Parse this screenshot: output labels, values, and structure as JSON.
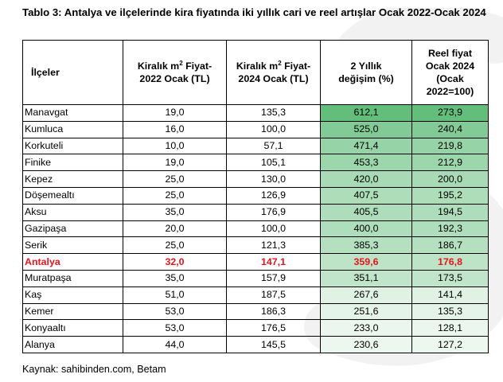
{
  "title": "Tablo 3: Antalya ve ilçelerinde kira fiyatında iki yıllık cari ve reel artışlar Ocak 2022-Ocak 2024",
  "headers": {
    "ilceler": "İlçeler",
    "col2_a": "Kiralık m",
    "col2_sup": "2",
    "col2_b": " Fiyat-",
    "col2_c": "2022 Ocak (TL)",
    "col3_a": "Kiralık m",
    "col3_sup": "2",
    "col3_b": " Fiyat-",
    "col3_c": "2024 Ocak (TL)",
    "col4_a": "2 Yıllık",
    "col4_b": "değişim (%)",
    "col5_a": "Reel fiyat",
    "col5_b": "Ocak 2024",
    "col5_c": "(Ocak",
    "col5_d": "2022=100)"
  },
  "rows": [
    {
      "name": "Manavgat",
      "p2022": "19,0",
      "p2024": "135,3",
      "change": "612,1",
      "real": "273,9"
    },
    {
      "name": "Kumluca",
      "p2022": "16,0",
      "p2024": "100,0",
      "change": "525,0",
      "real": "240,4"
    },
    {
      "name": "Korkuteli",
      "p2022": "10,0",
      "p2024": "57,1",
      "change": "471,4",
      "real": "219,8"
    },
    {
      "name": "Finike",
      "p2022": "19,0",
      "p2024": "105,1",
      "change": "453,3",
      "real": "212,9"
    },
    {
      "name": "Kepez",
      "p2022": "25,0",
      "p2024": "130,0",
      "change": "420,0",
      "real": "200,0"
    },
    {
      "name": "Döşemealtı",
      "p2022": "25,0",
      "p2024": "126,9",
      "change": "407,5",
      "real": "195,2"
    },
    {
      "name": "Aksu",
      "p2022": "35,0",
      "p2024": "176,9",
      "change": "405,5",
      "real": "194,5"
    },
    {
      "name": "Gazipaşa",
      "p2022": "20,0",
      "p2024": "100,0",
      "change": "400,0",
      "real": "192,3"
    },
    {
      "name": "Serik",
      "p2022": "25,0",
      "p2024": "121,3",
      "change": "385,3",
      "real": "186,7"
    },
    {
      "name": "Antalya",
      "p2022": "32,0",
      "p2024": "147,1",
      "change": "359,6",
      "real": "176,8",
      "highlight": true
    },
    {
      "name": "Muratpaşa",
      "p2022": "35,0",
      "p2024": "157,9",
      "change": "351,1",
      "real": "173,5"
    },
    {
      "name": "Kaş",
      "p2022": "51,0",
      "p2024": "187,5",
      "change": "267,6",
      "real": "141,4"
    },
    {
      "name": "Kemer",
      "p2022": "53,0",
      "p2024": "186,3",
      "change": "251,6",
      "real": "135,3"
    },
    {
      "name": "Konyaaltı",
      "p2022": "53,0",
      "p2024": "176,5",
      "change": "233,0",
      "real": "128,1"
    },
    {
      "name": "Alanya",
      "p2022": "44,0",
      "p2024": "145,5",
      "change": "230,6",
      "real": "127,2"
    }
  ],
  "colors": {
    "highlight_text": "#e8141c",
    "heat_high": "#63be7b",
    "heat_low": "#ffffff"
  },
  "source": "Kaynak: sahibinden.com, Betam"
}
